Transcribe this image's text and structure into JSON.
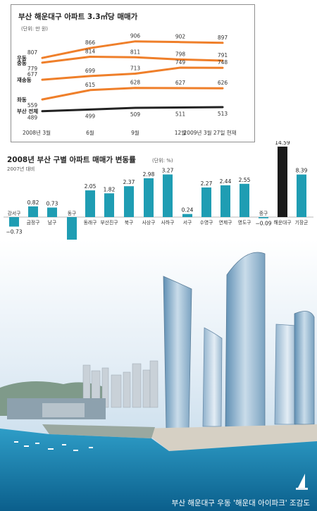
{
  "chart_data": [
    {
      "type": "line",
      "title": "부산 해운대구 아파트 3.3㎡당 매매가",
      "unit_note": "(단위: 만 원)",
      "categories": [
        "2008년 3월",
        "6월",
        "9월",
        "12월",
        "2009년 3월 27일 현재"
      ],
      "ylim": [
        450,
        930
      ],
      "series": [
        {
          "name": "우동",
          "values": [
            807,
            866,
            906,
            902,
            897
          ],
          "color": "#ef7f2a"
        },
        {
          "name": "중동",
          "values": [
            779,
            814,
            811,
            798,
            791
          ],
          "color": "#ef7f2a"
        },
        {
          "name": "재송동",
          "values": [
            677,
            699,
            713,
            749,
            748
          ],
          "color": "#ef7f2a"
        },
        {
          "name": "좌동",
          "values": [
            559,
            615,
            628,
            627,
            626
          ],
          "color": "#ef7f2a"
        },
        {
          "name": "부산 전체",
          "values": [
            489,
            499,
            509,
            511,
            513
          ],
          "color": "#222222"
        }
      ]
    },
    {
      "type": "bar",
      "title": "2008년 부산 구별 아파트 매매가 변동률",
      "unit_note": "(단위: %)",
      "subtitle": "2007년 대비",
      "categories": [
        "강서구",
        "금정구",
        "남구",
        "동구",
        "동래구",
        "부산진구",
        "북구",
        "사상구",
        "사하구",
        "서구",
        "수영구",
        "연제구",
        "영도구",
        "중구",
        "해운대구",
        "기장군"
      ],
      "values": [
        -0.73,
        0.82,
        0.73,
        -3.01,
        2.05,
        1.82,
        2.37,
        2.98,
        3.27,
        0.24,
        2.27,
        2.44,
        2.55,
        -0.09,
        14.59,
        8.39
      ],
      "highlight": "해운대구",
      "colors": {
        "bar": "#1f9db3",
        "highlight": "#1a1a1a"
      }
    }
  ],
  "caption": "부산 해운대구 우동 '해운대 아이파크' 조감도"
}
